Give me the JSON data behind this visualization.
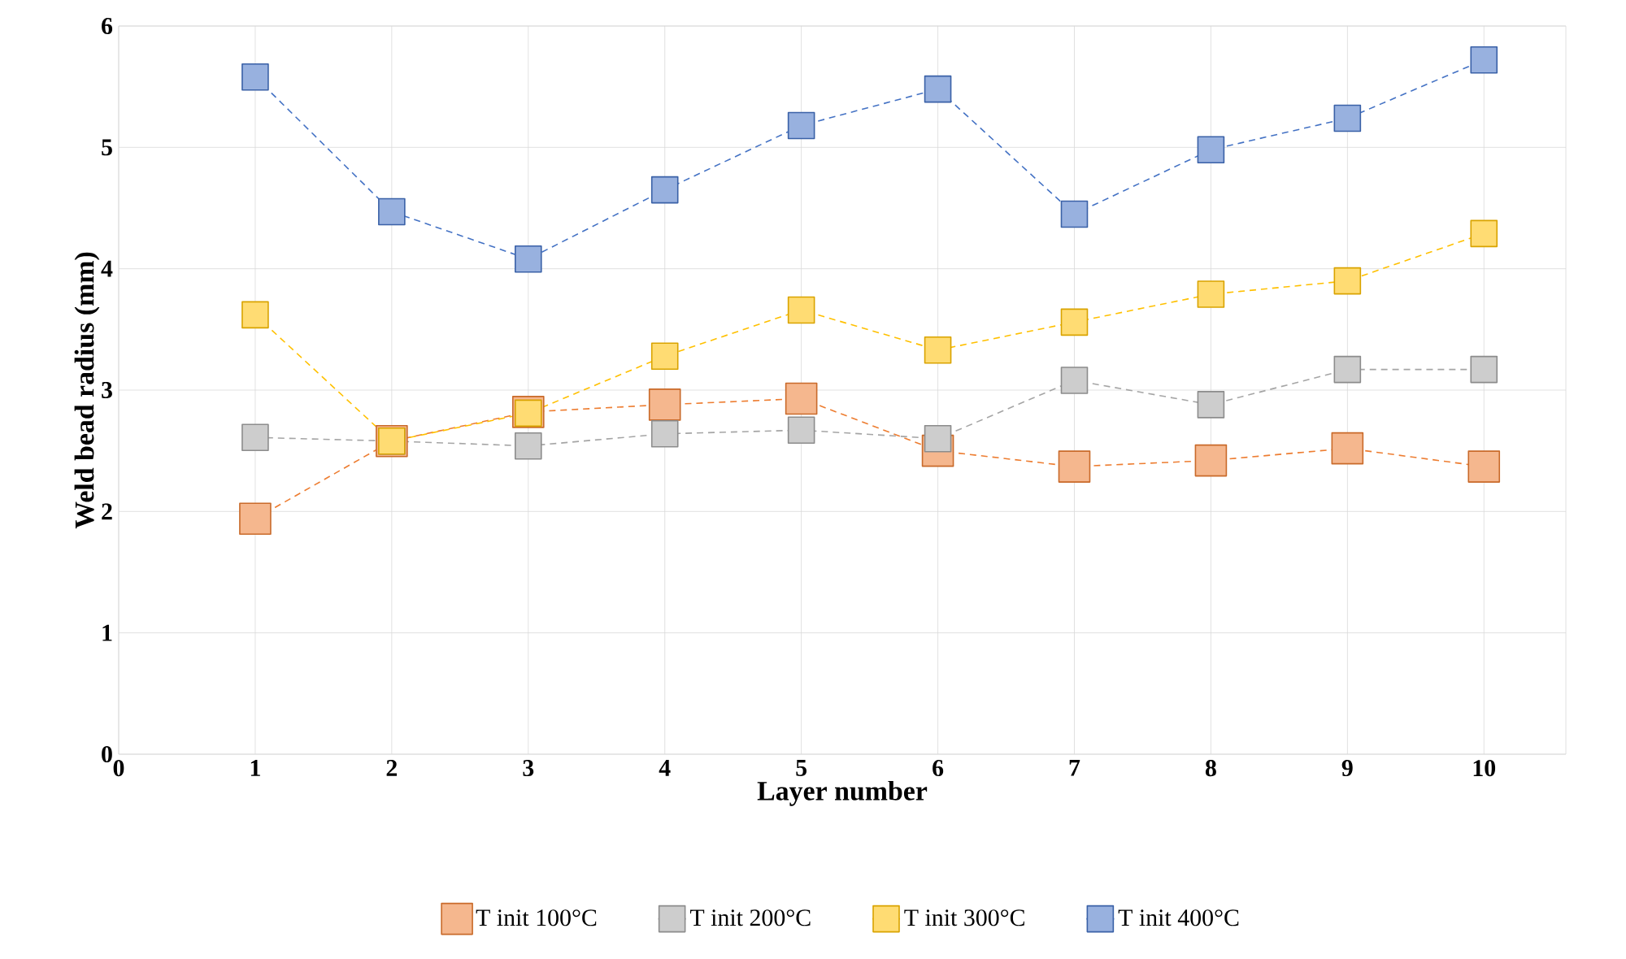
{
  "chart_data": {
    "type": "line",
    "xlabel": "Layer number",
    "ylabel": "Weld bead radius (mm)",
    "x": [
      1,
      2,
      3,
      4,
      5,
      6,
      7,
      8,
      9,
      10
    ],
    "series": [
      {
        "name": "T init 100°C",
        "color": "#ed7d31",
        "values": [
          1.94,
          2.58,
          2.82,
          2.88,
          2.93,
          2.5,
          2.37,
          2.42,
          2.52,
          2.37
        ]
      },
      {
        "name": "T init 200°C",
        "color": "#a5a5a5",
        "values": [
          2.61,
          2.58,
          2.54,
          2.64,
          2.67,
          2.6,
          3.08,
          2.88,
          3.17,
          3.17
        ]
      },
      {
        "name": "T init 300°C",
        "color": "#ffc000",
        "values": [
          3.62,
          2.58,
          2.81,
          3.28,
          3.66,
          3.33,
          3.56,
          3.79,
          3.9,
          4.29
        ]
      },
      {
        "name": "T init 400°C",
        "color": "#4472c4",
        "values": [
          5.58,
          4.47,
          4.08,
          4.65,
          5.18,
          5.48,
          4.45,
          4.98,
          5.24,
          5.72
        ]
      }
    ],
    "xlim": [
      0,
      10.6
    ],
    "ylim": [
      0,
      6
    ],
    "xticks": [
      0,
      1,
      2,
      3,
      4,
      5,
      6,
      7,
      8,
      9,
      10
    ],
    "yticks": [
      0,
      1,
      2,
      3,
      4,
      5,
      6
    ],
    "grid": true,
    "legend": "bottom",
    "marker": "square",
    "line_style": "dashed"
  }
}
